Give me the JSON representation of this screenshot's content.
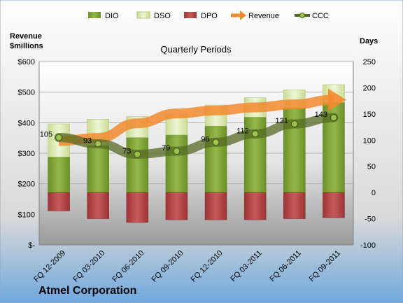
{
  "chart_data": {
    "type": "bar",
    "subtitle": "Quarterly Periods",
    "company": "Atmel Corporation",
    "left_axis_label_line1": "Revenue",
    "left_axis_label_line2": "$millions",
    "right_axis_label": "Days",
    "left_ylim": [
      0,
      600
    ],
    "right_ylim": [
      -100,
      250
    ],
    "left_ticks": [
      "$-",
      "$100",
      "$200",
      "$300",
      "$400",
      "$500",
      "$600"
    ],
    "left_tick_values": [
      0,
      100,
      200,
      300,
      400,
      500,
      600
    ],
    "right_ticks": [
      "-100",
      "-50",
      "0",
      "50",
      "100",
      "150",
      "200",
      "250"
    ],
    "right_tick_values": [
      -100,
      -50,
      0,
      50,
      100,
      150,
      200,
      250
    ],
    "categories": [
      "FQ 12-2009",
      "FQ 03-2010",
      "FQ 06-2010",
      "FQ 09-2010",
      "FQ 12-2010",
      "FQ 03-2011",
      "FQ 06-2011",
      "FQ 09-2011"
    ],
    "series": [
      {
        "name": "DIO",
        "axis": "days",
        "values": [
          68,
          90,
          105,
          110,
          127,
          144,
          162,
          172
        ],
        "color": "#86a83c"
      },
      {
        "name": "DSO",
        "axis": "days",
        "values": [
          63,
          50,
          40,
          40,
          40,
          37,
          34,
          34
        ],
        "color": "#dceab4"
      },
      {
        "name": "DPO",
        "axis": "days",
        "values": [
          -35,
          -50,
          -57,
          -52,
          -52,
          -52,
          -50,
          -48
        ],
        "color": "#b84a4a"
      },
      {
        "name": "Revenue",
        "axis": "revenue",
        "values": [
          340,
          350,
          398,
          430,
          440,
          450,
          460,
          475
        ],
        "color": "#f28a2e"
      },
      {
        "name": "CCC",
        "axis": "days",
        "values": [
          105,
          93,
          73,
          79,
          96,
          112,
          131,
          143
        ],
        "labels": [
          "105",
          "93",
          "73",
          "79",
          "96",
          "112",
          "131",
          "143"
        ],
        "color": "#556b24"
      }
    ],
    "legend_position": "top",
    "grid": true
  }
}
